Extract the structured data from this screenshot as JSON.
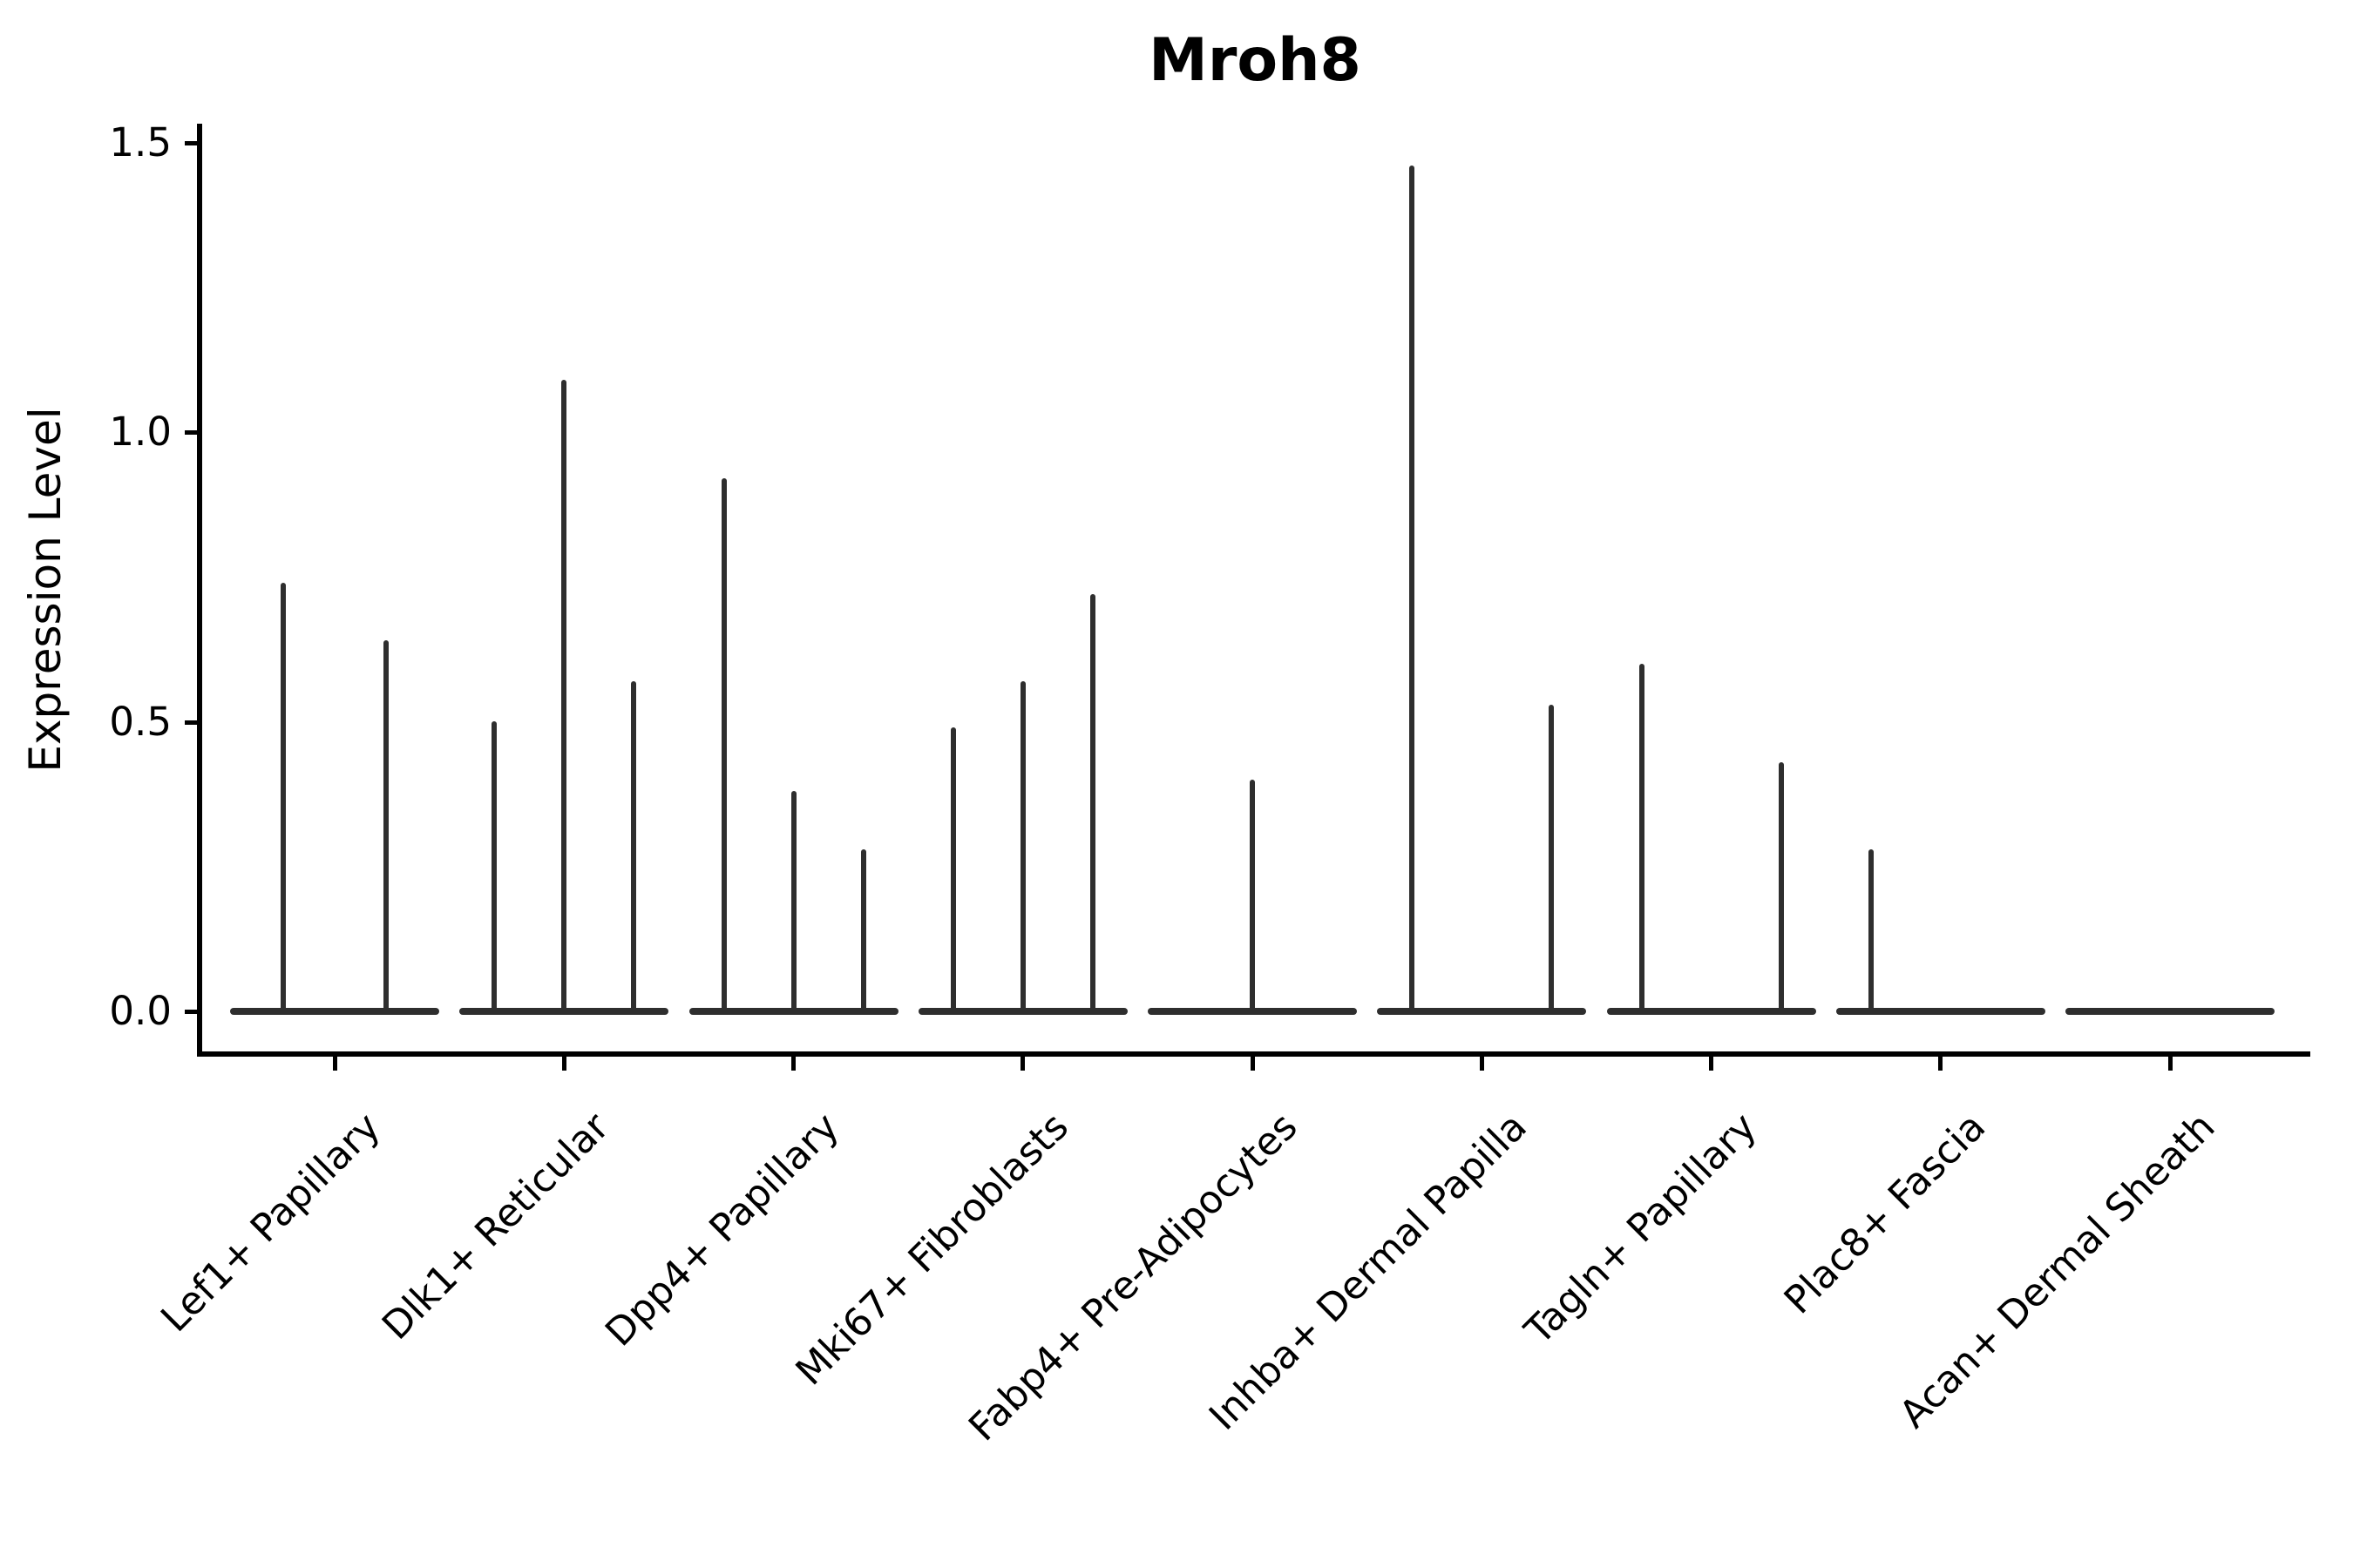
{
  "chart_data": {
    "type": "violin",
    "title": "Mroh8",
    "ylabel": "Expression Level",
    "xlabel": "",
    "ylim": [
      0,
      1.5
    ],
    "yticks": [
      "0.0",
      "0.5",
      "1.0",
      "1.5"
    ],
    "ytick_values": [
      0.0,
      0.5,
      1.0,
      1.5
    ],
    "grid": false,
    "legend": "none",
    "categories": [
      "Lef1+ Papillary",
      "Dlk1+ Reticular",
      "Dpp4+ Papillary",
      "Mki67+ Fibroblasts",
      "Fabp4+ Pre-Adipocytes",
      "Inhba+ Dermal Papilla",
      "Tagln+ Papillary",
      "Plac8+ Fascia",
      "Acan+ Dermal Sheath"
    ],
    "series": [
      {
        "category": "Lef1+ Papillary",
        "violin_peaks": [
          0.74,
          0.64
        ]
      },
      {
        "category": "Dlk1+ Reticular",
        "violin_peaks": [
          0.5,
          1.09,
          0.57
        ]
      },
      {
        "category": "Dpp4+ Papillary",
        "violin_peaks": [
          0.92,
          0.38,
          0.28
        ]
      },
      {
        "category": "Mki67+ Fibroblasts",
        "violin_peaks": [
          0.49,
          0.57,
          0.72
        ]
      },
      {
        "category": "Fabp4+ Pre-Adipocytes",
        "violin_peaks": [
          0.0,
          0.4,
          0.0
        ]
      },
      {
        "category": "Inhba+ Dermal Papilla",
        "violin_peaks": [
          1.46,
          0.0,
          0.53
        ]
      },
      {
        "category": "Tagln+ Papillary",
        "violin_peaks": [
          0.6,
          0.0,
          0.43
        ]
      },
      {
        "category": "Plac8+ Fascia",
        "violin_peaks": [
          0.28,
          0.0,
          0.0
        ]
      },
      {
        "category": "Acan+ Dermal Sheath",
        "violin_peaks": [
          0.0,
          0.0,
          0.0
        ]
      }
    ],
    "colors": {
      "violin": "#2e2e2e",
      "axis": "#000000",
      "text": "#000000",
      "background": "#ffffff"
    }
  }
}
